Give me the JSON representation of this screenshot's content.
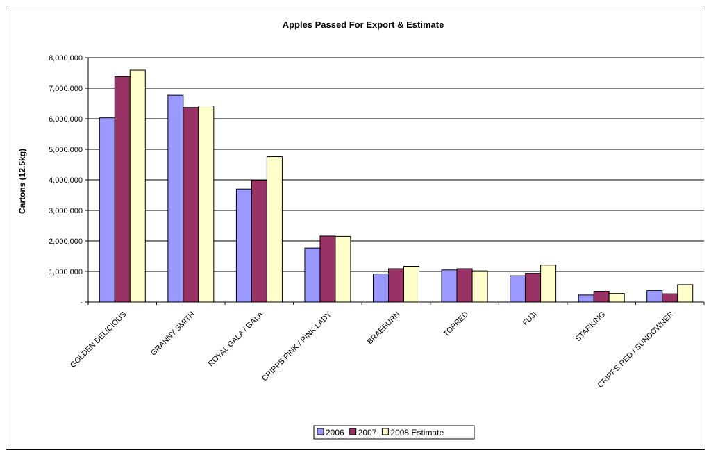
{
  "chart_data": {
    "type": "bar",
    "title": "Apples Passed For Export & Estimate",
    "xlabel": "",
    "ylabel": "Cartons (12.5kg)",
    "ylim": [
      0,
      8000000
    ],
    "yticks": [
      "-",
      "1,000,000",
      "2,000,000",
      "3,000,000",
      "4,000,000",
      "5,000,000",
      "6,000,000",
      "7,000,000",
      "8,000,000"
    ],
    "grid": true,
    "legend_position": "bottom",
    "categories": [
      "GOLDEN DELICIOUS",
      "GRANNY SMITH",
      "ROYAL GALA / GALA",
      "CRIPPS PINK / PINK LADY",
      "BRAEBURN",
      "TOPRED",
      "FUJI",
      "STARKING",
      "CRIPPS RED / SUNDOWNER"
    ],
    "series": [
      {
        "name": "2006",
        "color": "#9999ff",
        "values": [
          6030000,
          6770000,
          3700000,
          1770000,
          920000,
          1050000,
          860000,
          230000,
          380000
        ]
      },
      {
        "name": "2007",
        "color": "#993366",
        "values": [
          7380000,
          6370000,
          3990000,
          2160000,
          1090000,
          1090000,
          940000,
          350000,
          270000
        ]
      },
      {
        "name": "2008 Estimate",
        "color": "#ffffcc",
        "values": [
          7590000,
          6420000,
          4760000,
          2150000,
          1170000,
          1020000,
          1210000,
          280000,
          570000
        ]
      }
    ]
  }
}
